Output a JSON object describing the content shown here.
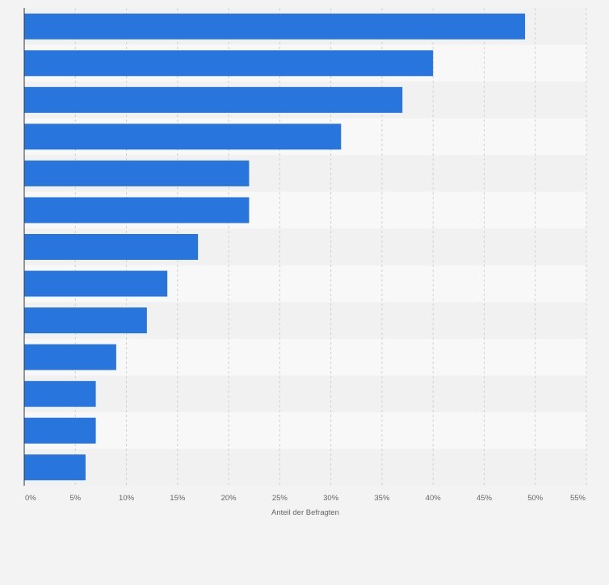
{
  "chart_data": {
    "type": "bar",
    "orientation": "horizontal",
    "categories": [
      "",
      "",
      "",
      "",
      "",
      "",
      "",
      "",
      "",
      "",
      "",
      "",
      ""
    ],
    "values": [
      49,
      40,
      37,
      31,
      22,
      22,
      17,
      14,
      12,
      9,
      7,
      7,
      6
    ],
    "title": "",
    "xlabel": "Anteil der Befragten",
    "ylabel": "",
    "xlim": [
      0,
      55
    ],
    "x_ticks": [
      0,
      5,
      10,
      15,
      20,
      25,
      30,
      35,
      40,
      45,
      50,
      55
    ],
    "x_tick_labels": [
      "0%",
      "5%",
      "10%",
      "15%",
      "20%",
      "25%",
      "30%",
      "35%",
      "40%",
      "45%",
      "50%",
      "55%"
    ],
    "grid": true,
    "legend": "none",
    "colors": {
      "bar": "#2876dd",
      "background": "#f3f3f3",
      "band_light": "#f8f8f8",
      "band_dark": "#f1f1f1",
      "grid": "#d0d0d0",
      "axis": "#333333",
      "tick_text": "#666666"
    }
  }
}
